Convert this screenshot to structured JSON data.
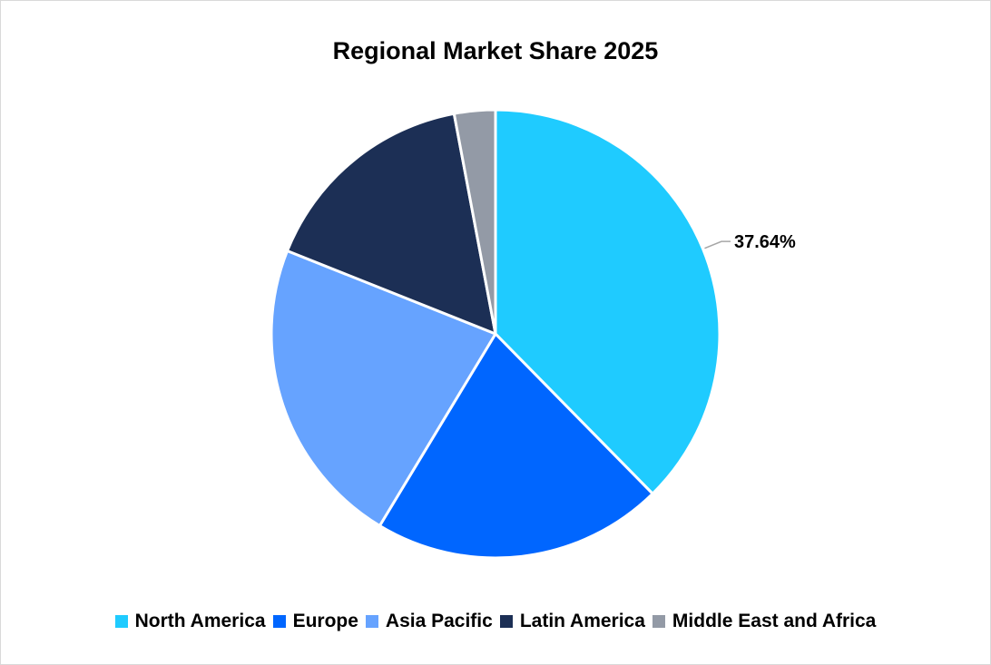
{
  "chart_data": {
    "type": "pie",
    "title": "Regional Market Share 2025",
    "categories": [
      "North America",
      "Europe",
      "Asia Pacific",
      "Latin America",
      "Middle East and Africa"
    ],
    "values": [
      37.64,
      21.0,
      22.4,
      16.0,
      2.96
    ],
    "colors": [
      "#1fcbff",
      "#0066ff",
      "#66a3ff",
      "#1c2f55",
      "#939aa6"
    ],
    "data_labels": [
      {
        "category": "North America",
        "text": "37.64%"
      }
    ],
    "legend_position": "bottom",
    "start_angle_deg": 0,
    "direction": "clockwise"
  }
}
